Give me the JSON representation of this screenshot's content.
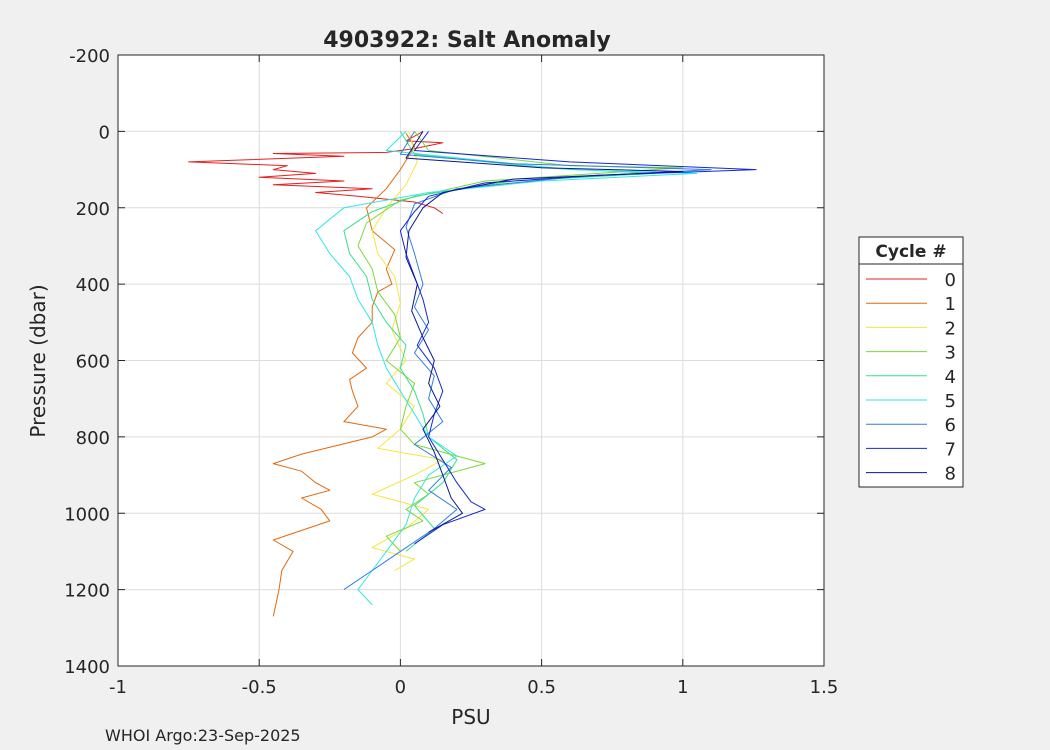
{
  "chart_data": {
    "type": "line",
    "title": "4903922: Salt Anomaly",
    "xlabel": "PSU",
    "ylabel": "Pressure (dbar)",
    "xlim": [
      -1,
      1.5
    ],
    "ylim": [
      -200,
      1400
    ],
    "y_reversed": true,
    "grid": true,
    "xticks": [
      -1,
      -0.5,
      0,
      0.5,
      1,
      1.5
    ],
    "xtick_labels": [
      "-1",
      "-0.5",
      "0",
      "0.5",
      "1",
      "1.5"
    ],
    "yticks": [
      -200,
      0,
      200,
      400,
      600,
      800,
      1000,
      1200,
      1400
    ],
    "ytick_labels": [
      "-200",
      "0",
      "200",
      "400",
      "600",
      "800",
      "1000",
      "1200",
      "1400"
    ],
    "legend_title": "Cycle #",
    "legend_position": "outside-right",
    "footer": "WHOI Argo:23-Sep-2025",
    "series": [
      {
        "name": "0",
        "color": "#e52020",
        "points": [
          [
            0.08,
            0
          ],
          [
            0.02,
            25
          ],
          [
            0.15,
            30
          ],
          [
            0.05,
            45
          ],
          [
            -0.05,
            55
          ],
          [
            -0.45,
            58
          ],
          [
            -0.2,
            65
          ],
          [
            -0.75,
            80
          ],
          [
            -0.4,
            90
          ],
          [
            -0.45,
            100
          ],
          [
            -0.3,
            110
          ],
          [
            -0.5,
            120
          ],
          [
            -0.2,
            130
          ],
          [
            -0.45,
            140
          ],
          [
            -0.1,
            150
          ],
          [
            -0.3,
            160
          ],
          [
            -0.15,
            170
          ],
          [
            0.05,
            185
          ],
          [
            0.12,
            200
          ],
          [
            0.15,
            215
          ]
        ]
      },
      {
        "name": "1",
        "color": "#e06a10",
        "points": [
          [
            0.02,
            5
          ],
          [
            0.05,
            40
          ],
          [
            0.0,
            100
          ],
          [
            -0.05,
            150
          ],
          [
            -0.12,
            200
          ],
          [
            -0.1,
            260
          ],
          [
            -0.02,
            310
          ],
          [
            -0.05,
            360
          ],
          [
            -0.03,
            400
          ],
          [
            -0.08,
            420
          ],
          [
            -0.1,
            460
          ],
          [
            -0.1,
            500
          ],
          [
            -0.15,
            540
          ],
          [
            -0.17,
            580
          ],
          [
            -0.12,
            620
          ],
          [
            -0.18,
            650
          ],
          [
            -0.17,
            680
          ],
          [
            -0.15,
            720
          ],
          [
            -0.2,
            760
          ],
          [
            -0.05,
            780
          ],
          [
            -0.1,
            800
          ],
          [
            -0.35,
            845
          ],
          [
            -0.45,
            870
          ],
          [
            -0.35,
            890
          ],
          [
            -0.3,
            920
          ],
          [
            -0.25,
            940
          ],
          [
            -0.35,
            960
          ],
          [
            -0.28,
            990
          ],
          [
            -0.25,
            1020
          ],
          [
            -0.45,
            1070
          ],
          [
            -0.38,
            1100
          ],
          [
            -0.42,
            1150
          ],
          [
            -0.43,
            1200
          ],
          [
            -0.45,
            1270
          ]
        ]
      },
      {
        "name": "2",
        "color": "#f5e63c",
        "points": [
          [
            0.03,
            0
          ],
          [
            0.06,
            80
          ],
          [
            0.02,
            140
          ],
          [
            -0.05,
            200
          ],
          [
            -0.1,
            260
          ],
          [
            -0.08,
            320
          ],
          [
            -0.02,
            380
          ],
          [
            0.0,
            450
          ],
          [
            -0.03,
            520
          ],
          [
            0.02,
            600
          ],
          [
            -0.05,
            660
          ],
          [
            0.05,
            720
          ],
          [
            0.0,
            780
          ],
          [
            -0.08,
            830
          ],
          [
            0.15,
            860
          ],
          [
            0.05,
            900
          ],
          [
            -0.1,
            950
          ],
          [
            0.1,
            990
          ],
          [
            0.02,
            1040
          ],
          [
            -0.1,
            1090
          ],
          [
            0.05,
            1120
          ],
          [
            -0.02,
            1150
          ]
        ]
      },
      {
        "name": "3",
        "color": "#7ad934",
        "points": [
          [
            0.05,
            0
          ],
          [
            0.1,
            50
          ],
          [
            0.6,
            90
          ],
          [
            1.0,
            95
          ],
          [
            0.7,
            110
          ],
          [
            0.3,
            130
          ],
          [
            0.0,
            180
          ],
          [
            -0.12,
            240
          ],
          [
            -0.15,
            300
          ],
          [
            -0.1,
            360
          ],
          [
            -0.08,
            420
          ],
          [
            -0.02,
            480
          ],
          [
            0.0,
            540
          ],
          [
            -0.05,
            600
          ],
          [
            0.05,
            660
          ],
          [
            0.02,
            720
          ],
          [
            0.0,
            780
          ],
          [
            0.05,
            820
          ],
          [
            0.3,
            870
          ],
          [
            0.05,
            920
          ],
          [
            0.1,
            950
          ],
          [
            0.02,
            990
          ],
          [
            0.08,
            1020
          ],
          [
            -0.05,
            1060
          ],
          [
            0.0,
            1100
          ]
        ]
      },
      {
        "name": "4",
        "color": "#34e08a",
        "points": [
          [
            0.0,
            0
          ],
          [
            0.05,
            60
          ],
          [
            0.5,
            95
          ],
          [
            0.9,
            110
          ],
          [
            0.4,
            130
          ],
          [
            0.05,
            170
          ],
          [
            -0.1,
            210
          ],
          [
            -0.2,
            260
          ],
          [
            -0.18,
            320
          ],
          [
            -0.12,
            380
          ],
          [
            -0.1,
            440
          ],
          [
            -0.05,
            500
          ],
          [
            0.02,
            560
          ],
          [
            0.0,
            620
          ],
          [
            0.05,
            680
          ],
          [
            0.08,
            740
          ],
          [
            0.1,
            800
          ],
          [
            0.2,
            860
          ],
          [
            0.15,
            920
          ],
          [
            0.05,
            980
          ],
          [
            0.12,
            1040
          ],
          [
            0.02,
            1100
          ]
        ]
      },
      {
        "name": "5",
        "color": "#33e6e6",
        "points": [
          [
            0.02,
            0
          ],
          [
            -0.05,
            50
          ],
          [
            0.6,
            100
          ],
          [
            1.05,
            110
          ],
          [
            0.5,
            130
          ],
          [
            0.1,
            160
          ],
          [
            -0.2,
            200
          ],
          [
            -0.3,
            260
          ],
          [
            -0.25,
            320
          ],
          [
            -0.18,
            380
          ],
          [
            -0.15,
            440
          ],
          [
            -0.1,
            500
          ],
          [
            -0.08,
            560
          ],
          [
            -0.05,
            620
          ],
          [
            0.0,
            680
          ],
          [
            0.05,
            740
          ],
          [
            0.1,
            800
          ],
          [
            0.2,
            850
          ],
          [
            0.1,
            900
          ],
          [
            0.05,
            960
          ],
          [
            0.02,
            1030
          ],
          [
            -0.05,
            1100
          ],
          [
            -0.1,
            1150
          ],
          [
            -0.15,
            1200
          ],
          [
            -0.1,
            1240
          ]
        ]
      },
      {
        "name": "6",
        "color": "#2f7fe0",
        "points": [
          [
            0.05,
            0
          ],
          [
            0.0,
            60
          ],
          [
            0.4,
            85
          ],
          [
            1.1,
            100
          ],
          [
            0.6,
            120
          ],
          [
            0.2,
            150
          ],
          [
            0.05,
            190
          ],
          [
            0.02,
            250
          ],
          [
            0.05,
            320
          ],
          [
            0.08,
            400
          ],
          [
            0.05,
            460
          ],
          [
            0.1,
            520
          ],
          [
            0.05,
            580
          ],
          [
            0.12,
            640
          ],
          [
            0.1,
            700
          ],
          [
            0.15,
            760
          ],
          [
            0.05,
            820
          ],
          [
            0.18,
            880
          ],
          [
            0.1,
            940
          ],
          [
            0.2,
            990
          ],
          [
            0.12,
            1040
          ],
          [
            0.0,
            1100
          ],
          [
            -0.1,
            1150
          ],
          [
            -0.2,
            1200
          ]
        ]
      },
      {
        "name": "7",
        "color": "#1428d6",
        "points": [
          [
            0.1,
            0
          ],
          [
            0.05,
            50
          ],
          [
            0.6,
            80
          ],
          [
            1.26,
            100
          ],
          [
            0.7,
            115
          ],
          [
            0.3,
            135
          ],
          [
            0.1,
            170
          ],
          [
            0.05,
            210
          ],
          [
            0.0,
            260
          ],
          [
            0.02,
            320
          ],
          [
            0.05,
            380
          ],
          [
            0.08,
            440
          ],
          [
            0.1,
            500
          ],
          [
            0.06,
            560
          ],
          [
            0.12,
            620
          ],
          [
            0.15,
            680
          ],
          [
            0.12,
            740
          ],
          [
            0.1,
            800
          ],
          [
            0.15,
            860
          ],
          [
            0.2,
            920
          ],
          [
            0.25,
            970
          ],
          [
            0.3,
            990
          ],
          [
            0.15,
            1030
          ],
          [
            0.05,
            1080
          ]
        ]
      },
      {
        "name": "8",
        "color": "#0a1696",
        "points": [
          [
            0.08,
            0
          ],
          [
            0.02,
            70
          ],
          [
            0.5,
            95
          ],
          [
            1.0,
            105
          ],
          [
            0.4,
            125
          ],
          [
            0.15,
            160
          ],
          [
            0.08,
            200
          ],
          [
            0.03,
            260
          ],
          [
            0.02,
            330
          ],
          [
            0.06,
            400
          ],
          [
            0.04,
            470
          ],
          [
            0.08,
            540
          ],
          [
            0.12,
            600
          ],
          [
            0.1,
            660
          ],
          [
            0.14,
            720
          ],
          [
            0.08,
            780
          ],
          [
            0.12,
            840
          ],
          [
            0.15,
            900
          ],
          [
            0.18,
            960
          ],
          [
            0.22,
            1000
          ],
          [
            0.1,
            1050
          ]
        ]
      }
    ]
  }
}
